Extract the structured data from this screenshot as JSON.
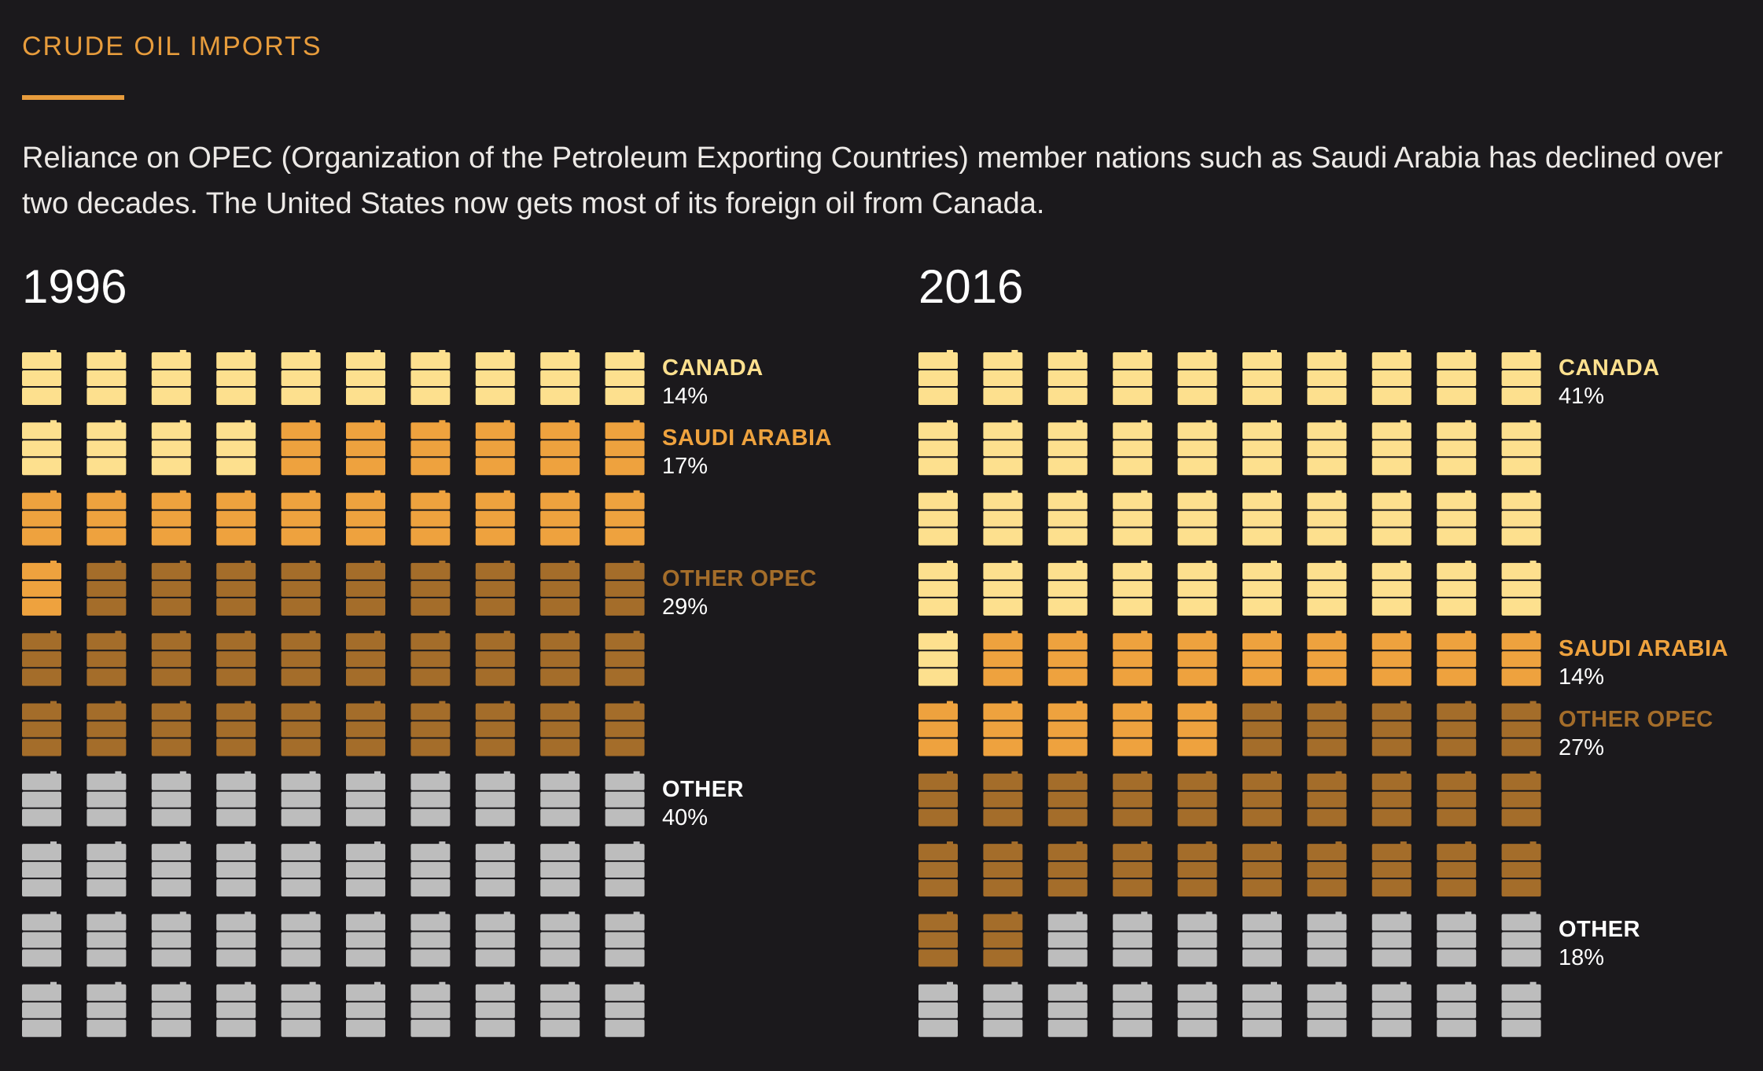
{
  "header": {
    "kicker": "CRUDE OIL IMPORTS",
    "description": "Reliance on OPEC (Organization of the Petroleum Exporting Countries) member nations such as Saudi Arabia has declined over two decades. The United States now gets most of its foreign oil from Canada."
  },
  "colors": {
    "background": "#1b191c",
    "accent": "#e79c3c",
    "canada": "#fde08e",
    "saudi_arabia": "#eea23e",
    "other_opec": "#a46d2a",
    "other": "#bdbdbd"
  },
  "icon": "oil-barrel-icon",
  "chart_data": [
    {
      "type": "waffle",
      "title": "1996",
      "grid": [
        10,
        10
      ],
      "categories": [
        {
          "name": "CANADA",
          "value": 14,
          "label": "14%",
          "color": "#fde08e"
        },
        {
          "name": "SAUDI ARABIA",
          "value": 17,
          "label": "17%",
          "color": "#eea23e"
        },
        {
          "name": "OTHER OPEC",
          "value": 29,
          "label": "29%",
          "color": "#a46d2a"
        },
        {
          "name": "OTHER",
          "value": 40,
          "label": "40%",
          "color": "#bdbdbd"
        }
      ]
    },
    {
      "type": "waffle",
      "title": "2016",
      "grid": [
        10,
        10
      ],
      "categories": [
        {
          "name": "CANADA",
          "value": 41,
          "label": "41%",
          "color": "#fde08e"
        },
        {
          "name": "SAUDI ARABIA",
          "value": 14,
          "label": "14%",
          "color": "#eea23e"
        },
        {
          "name": "OTHER OPEC",
          "value": 27,
          "label": "27%",
          "color": "#a46d2a"
        },
        {
          "name": "OTHER",
          "value": 18,
          "label": "18%",
          "color": "#bdbdbd"
        }
      ]
    }
  ]
}
